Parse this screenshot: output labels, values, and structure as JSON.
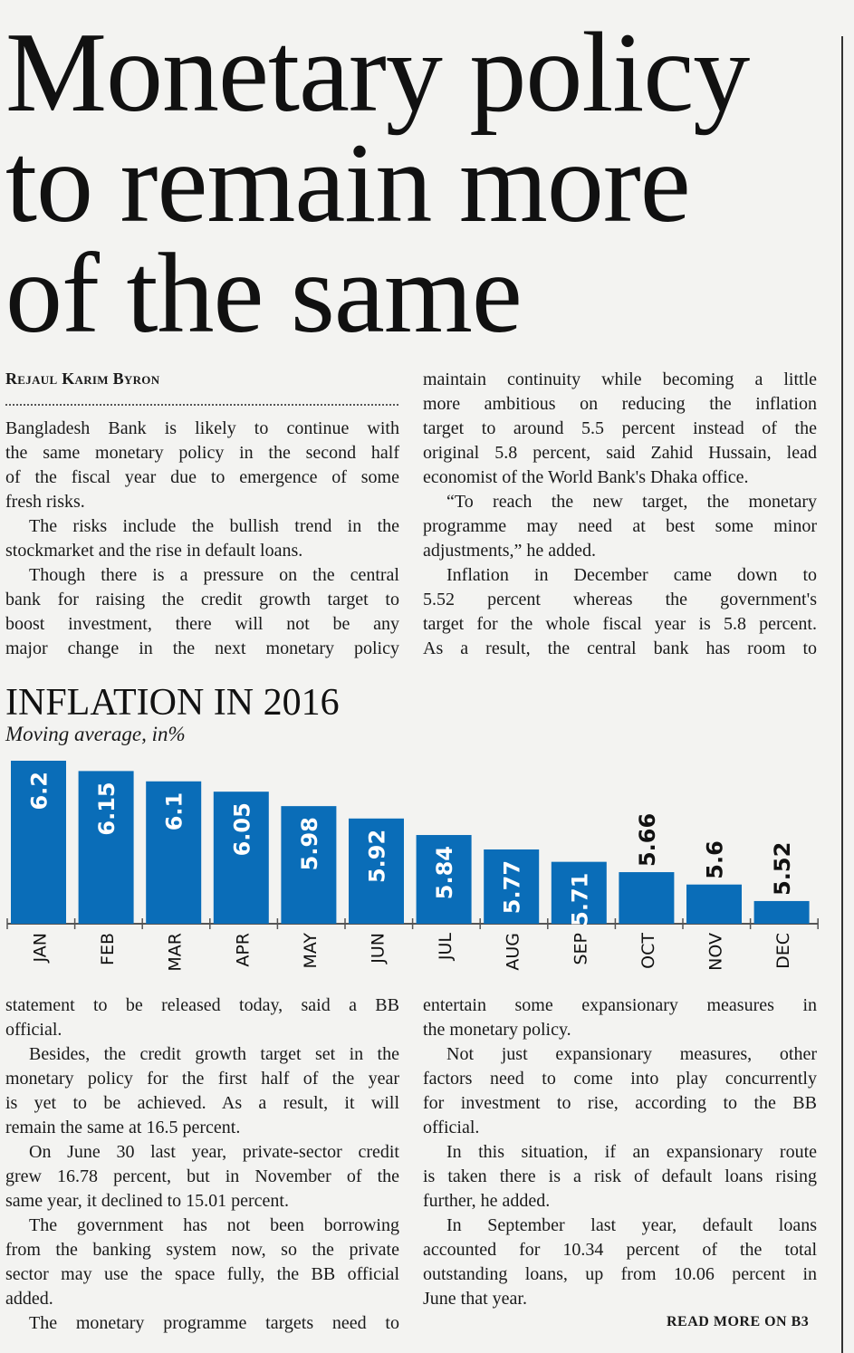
{
  "headline": [
    "Monetary policy",
    "to remain more",
    "of the same"
  ],
  "byline": "Rejaul Karim Byron",
  "columns_top_left": [
    {
      "indent": false,
      "cont": false,
      "lines": [
        "Bangladesh Bank is likely to continue with",
        "the same monetary policy in the second half",
        "of the fiscal year due to emergence of some",
        "fresh risks."
      ]
    },
    {
      "indent": true,
      "cont": false,
      "lines": [
        "The risks include the bullish trend in the",
        "stockmarket and the rise in default loans."
      ]
    },
    {
      "indent": true,
      "cont": true,
      "lines": [
        "Though there is a pressure on the central",
        "bank for raising the credit growth target to",
        "boost investment, there will not be any",
        "major change in the next monetary policy"
      ]
    }
  ],
  "columns_top_right": [
    {
      "indent": false,
      "cont": false,
      "lines": [
        "maintain continuity while becoming a little",
        "more ambitious on reducing the inflation",
        "target to around 5.5 percent instead of the",
        "original 5.8 percent, said Zahid Hussain, lead",
        "economist of the World Bank's Dhaka office."
      ]
    },
    {
      "indent": true,
      "cont": false,
      "lines": [
        "“To reach the new target, the monetary",
        "programme may need at best some minor",
        "adjustments,” he added."
      ]
    },
    {
      "indent": true,
      "cont": true,
      "lines": [
        "Inflation in December came down to",
        "5.52 percent whereas the government's",
        "target for the whole fiscal year is 5.8 percent.",
        "As a result, the central bank has room to"
      ]
    }
  ],
  "columns_bottom_left": [
    {
      "indent": false,
      "cont": false,
      "lines": [
        "statement to be released today, said a BB",
        "official."
      ]
    },
    {
      "indent": true,
      "cont": false,
      "lines": [
        "Besides, the credit growth target set in the",
        "monetary policy for the first half of the year",
        "is yet to be achieved. As a result, it will",
        "remain the same at 16.5 percent."
      ]
    },
    {
      "indent": true,
      "cont": false,
      "lines": [
        "On June 30 last year, private-sector credit",
        "grew 16.78 percent, but in November of the",
        "same year, it declined to 15.01 percent."
      ]
    },
    {
      "indent": true,
      "cont": false,
      "lines": [
        "The government has not been borrowing",
        "from the banking system now, so the private",
        "sector may use the space fully, the BB official",
        "added."
      ]
    },
    {
      "indent": true,
      "cont": true,
      "lines": [
        "The monetary programme targets need to"
      ]
    }
  ],
  "columns_bottom_right": [
    {
      "indent": false,
      "cont": false,
      "lines": [
        "entertain some expansionary measures in",
        "the monetary policy."
      ]
    },
    {
      "indent": true,
      "cont": false,
      "lines": [
        "Not just expansionary measures, other",
        "factors need to come into play concurrently",
        "for investment to rise, according to the BB",
        "official."
      ]
    },
    {
      "indent": true,
      "cont": false,
      "lines": [
        "In this situation, if an expansionary route",
        "is taken there is a risk of default loans rising",
        "further, he added."
      ]
    },
    {
      "indent": true,
      "cont": false,
      "lines": [
        "In September last year, default loans",
        "accounted for 10.34 percent of the total",
        "outstanding loans, up from 10.06 percent in",
        "June that year."
      ]
    }
  ],
  "read_more": "READ MORE ON B3",
  "chart_data": {
    "type": "bar",
    "title": "INFLATION IN 2016",
    "subtitle": "Moving average, in%",
    "xlabel": "",
    "ylabel": "",
    "categories": [
      "JAN",
      "FEB",
      "MAR",
      "APR",
      "MAY",
      "JUN",
      "JUL",
      "AUG",
      "SEP",
      "OCT",
      "NOV",
      "DEC"
    ],
    "values": [
      6.2,
      6.15,
      6.1,
      6.05,
      5.98,
      5.92,
      5.84,
      5.77,
      5.71,
      5.66,
      5.6,
      5.52
    ],
    "value_labels": [
      "6.2",
      "6.15",
      "6.1",
      "6.05",
      "5.98",
      "5.92",
      "5.84",
      "5.77",
      "5.71",
      "5.66",
      "5.6",
      "5.52"
    ],
    "ylim": [
      5.41,
      6.2
    ],
    "grid": false,
    "bar_color": "#0a6db8"
  }
}
